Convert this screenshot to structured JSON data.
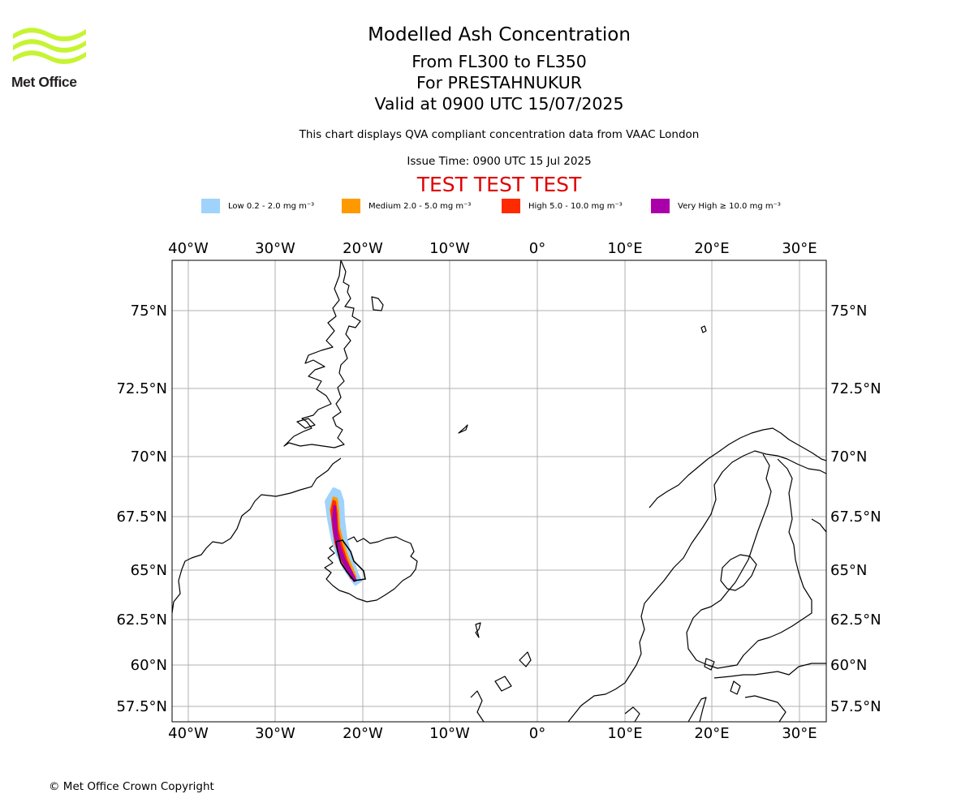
{
  "logo": {
    "text": "Met Office",
    "colors": {
      "waves": "#c6f432",
      "text": "#231f20"
    }
  },
  "header": {
    "title": "Modelled Ash Concentration",
    "levels": "From FL300 to FL350",
    "location": "For PRESTAHNUKUR",
    "valid": "Valid at 0900 UTC 15/07/2025",
    "note": "This chart displays QVA compliant concentration data from VAAC London",
    "issue_time": "Issue Time: 0900 UTC 15 Jul 2025",
    "test_banner": "TEST TEST TEST"
  },
  "legend": [
    {
      "label": "Low 0.2 - 2.0 mg m⁻³",
      "color": "#9fd3fc"
    },
    {
      "label": "Medium 2.0 - 5.0 mg m⁻³",
      "color": "#ff9900"
    },
    {
      "label": "High 5.0 - 10.0 mg m⁻³",
      "color": "#ff2a00"
    },
    {
      "label": "Very High  ≥  10.0 mg m⁻³",
      "color": "#aa00aa"
    }
  ],
  "map": {
    "lon_ticks": [
      "40°W",
      "30°W",
      "20°W",
      "10°W",
      "0°",
      "10°E",
      "20°E",
      "30°E"
    ],
    "lat_ticks": [
      "75°N",
      "72.5°N",
      "70°N",
      "67.5°N",
      "65°N",
      "62.5°N",
      "60°N",
      "57.5°N"
    ],
    "grid_color": "#b0b0b0",
    "coast_color": "#000000"
  },
  "footer": {
    "copyright": "© Met Office Crown Copyright"
  }
}
